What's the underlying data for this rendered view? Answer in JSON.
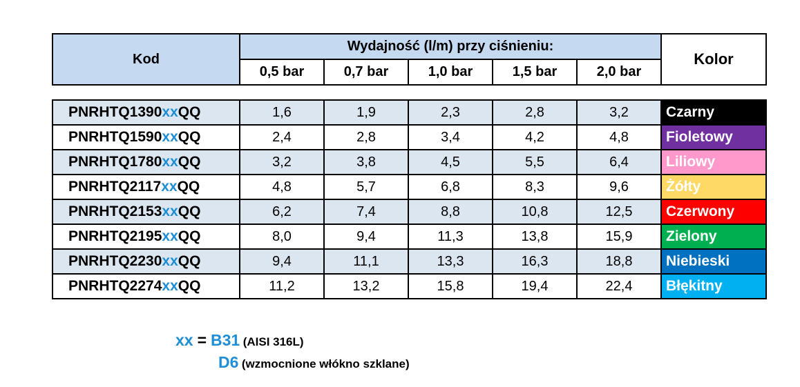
{
  "header": {
    "kod": "Kod",
    "group_title": "Wydajność (l/m) przy ciśnieniu:",
    "pressures": [
      "0,5 bar",
      "0,7 bar",
      "1,0 bar",
      "1,5 bar",
      "2,0 bar"
    ],
    "kolor": "Kolor"
  },
  "rows": [
    {
      "code_prefix": "PNRHTQ1390",
      "code_xx": "xx",
      "code_suffix": "QQ",
      "values": [
        "1,6",
        "1,9",
        "2,3",
        "2,8",
        "3,2"
      ],
      "color_name": "Czarny",
      "color_bg": "#000000"
    },
    {
      "code_prefix": "PNRHTQ1590",
      "code_xx": "xx",
      "code_suffix": "QQ",
      "values": [
        "2,4",
        "2,8",
        "3,4",
        "4,2",
        "4,8"
      ],
      "color_name": "Fioletowy",
      "color_bg": "#7030a0"
    },
    {
      "code_prefix": "PNRHTQ1780",
      "code_xx": "xx",
      "code_suffix": "QQ",
      "values": [
        "3,2",
        "3,8",
        "4,5",
        "5,5",
        "6,4"
      ],
      "color_name": "Liliowy",
      "color_bg": "#ff99cc"
    },
    {
      "code_prefix": "PNRHTQ2117",
      "code_xx": "xx",
      "code_suffix": "QQ",
      "values": [
        "4,8",
        "5,7",
        "6,8",
        "8,3",
        "9,6"
      ],
      "color_name": "Żółty",
      "color_bg": "#ffd966"
    },
    {
      "code_prefix": "PNRHTQ2153",
      "code_xx": "xx",
      "code_suffix": "QQ",
      "values": [
        "6,2",
        "7,4",
        "8,8",
        "10,8",
        "12,5"
      ],
      "color_name": "Czerwony",
      "color_bg": "#ff0000"
    },
    {
      "code_prefix": "PNRHTQ2195",
      "code_xx": "xx",
      "code_suffix": "QQ",
      "values": [
        "8,0",
        "9,4",
        "11,3",
        "13,8",
        "15,9"
      ],
      "color_name": "Zielony",
      "color_bg": "#00b050"
    },
    {
      "code_prefix": "PNRHTQ2230",
      "code_xx": "xx",
      "code_suffix": "QQ",
      "values": [
        "9,4",
        "11,1",
        "13,3",
        "16,3",
        "18,8"
      ],
      "color_name": "Niebieski",
      "color_bg": "#0070c0"
    },
    {
      "code_prefix": "PNRHTQ2274",
      "code_xx": "xx",
      "code_suffix": "QQ",
      "values": [
        "11,2",
        "13,2",
        "15,8",
        "19,4",
        "22,4"
      ],
      "color_name": "Błękitny",
      "color_bg": "#00b0f0"
    }
  ],
  "legend": {
    "xx": "xx",
    "eq": "=",
    "opt1_code": "B31",
    "opt1_desc": "(AISI 316L)",
    "opt2_code": "D6",
    "opt2_desc": "(wzmocnione włókno szklane)"
  },
  "colors": {
    "accent_blue": "#1e8fd6",
    "header_bg": "#c5d9f1",
    "stripe_bg": "#dce6f1"
  }
}
